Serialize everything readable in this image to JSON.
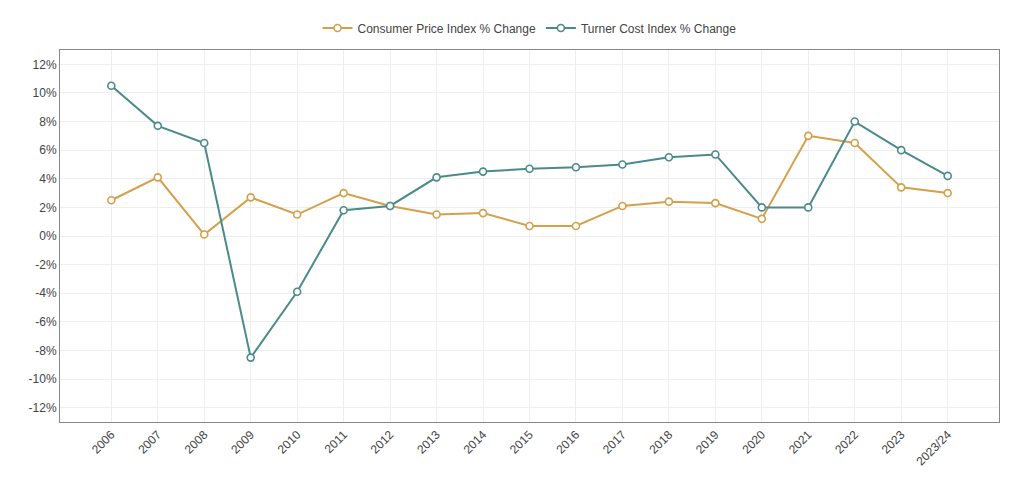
{
  "chart_data": {
    "type": "line",
    "categories": [
      "2006",
      "2007",
      "2008",
      "2009",
      "2010",
      "2011",
      "2012",
      "2013",
      "2014",
      "2015",
      "2016",
      "2017",
      "2018",
      "2019",
      "2020",
      "2021",
      "2022",
      "2023",
      "2023/24"
    ],
    "series": [
      {
        "name": "Consumer Price Index % Change",
        "color": "#d4a04a",
        "marker": "circle",
        "values": [
          2.5,
          4.1,
          0.1,
          2.7,
          1.5,
          3.0,
          2.1,
          1.5,
          1.6,
          0.7,
          0.7,
          2.1,
          2.4,
          2.3,
          1.2,
          7.0,
          6.5,
          3.4,
          3.0
        ]
      },
      {
        "name": "Turner Cost Index % Change",
        "color": "#4a8a8c",
        "marker": "circle",
        "values": [
          10.5,
          7.7,
          6.5,
          -8.5,
          -3.9,
          1.8,
          2.1,
          4.1,
          4.5,
          4.7,
          4.8,
          5.0,
          5.5,
          5.7,
          2.0,
          2.0,
          8.0,
          6.0,
          4.2
        ]
      }
    ],
    "ylim": [
      -13,
      13
    ],
    "yticks": [
      {
        "value": -12,
        "label": "-12%"
      },
      {
        "value": -10,
        "label": "-10%"
      },
      {
        "value": -8,
        "label": "-8%"
      },
      {
        "value": -6,
        "label": "-6%"
      },
      {
        "value": -4,
        "label": "-4%"
      },
      {
        "value": -2,
        "label": "-2%"
      },
      {
        "value": 0,
        "label": "0%"
      },
      {
        "value": 2,
        "label": "2%"
      },
      {
        "value": 4,
        "label": "4%"
      },
      {
        "value": 6,
        "label": "6%"
      },
      {
        "value": 8,
        "label": "8%"
      },
      {
        "value": 10,
        "label": "10%"
      },
      {
        "value": 12,
        "label": "12%"
      }
    ],
    "grid": true,
    "legend": "top"
  }
}
